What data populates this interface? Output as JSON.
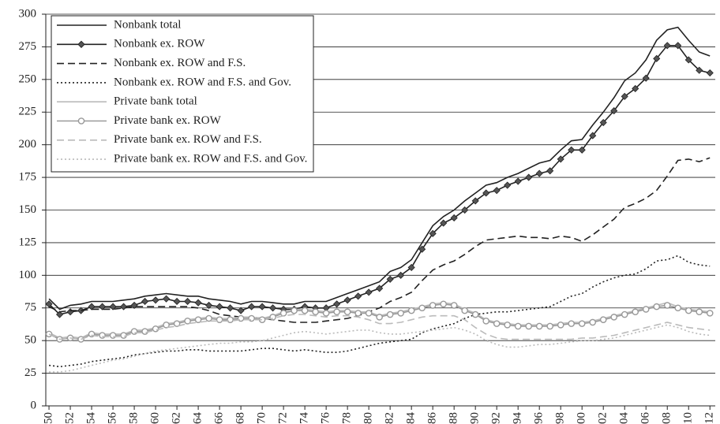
{
  "chart_data": {
    "type": "line",
    "x": [
      1950,
      1951,
      1952,
      1953,
      1954,
      1955,
      1956,
      1957,
      1958,
      1959,
      1960,
      1961,
      1962,
      1963,
      1964,
      1965,
      1966,
      1967,
      1968,
      1969,
      1970,
      1971,
      1972,
      1973,
      1974,
      1975,
      1976,
      1977,
      1978,
      1979,
      1980,
      1981,
      1982,
      1983,
      1984,
      1985,
      1986,
      1987,
      1988,
      1989,
      1990,
      1991,
      1992,
      1993,
      1994,
      1995,
      1996,
      1997,
      1998,
      1999,
      2000,
      2001,
      2002,
      2003,
      2004,
      2005,
      2006,
      2007,
      2008,
      2009,
      2010,
      2011,
      2012
    ],
    "xlim": [
      1949.7,
      2012.5
    ],
    "xticks": [
      1950,
      1952,
      1954,
      1956,
      1958,
      1960,
      1962,
      1964,
      1966,
      1968,
      1970,
      1972,
      1974,
      1976,
      1978,
      1980,
      1982,
      1984,
      1986,
      1988,
      1990,
      1992,
      1994,
      1996,
      1998,
      2000,
      2002,
      2004,
      2006,
      2008,
      2010,
      2012
    ],
    "ylim": [
      0,
      300
    ],
    "yticks": [
      0,
      25,
      50,
      75,
      100,
      125,
      150,
      175,
      200,
      225,
      250,
      275,
      300
    ],
    "grid": true,
    "legend": "upper left",
    "series": [
      {
        "name": "Nonbank total",
        "color": "#222222",
        "dash": "solid",
        "marker": "none",
        "values": [
          82,
          74,
          77,
          78,
          80,
          80,
          80,
          81,
          82,
          84,
          85,
          86,
          85,
          84,
          84,
          82,
          81,
          80,
          78,
          80,
          80,
          79,
          78,
          78,
          80,
          80,
          80,
          83,
          86,
          89,
          92,
          95,
          103,
          106,
          112,
          125,
          138,
          145,
          150,
          157,
          163,
          169,
          171,
          175,
          178,
          182,
          186,
          188,
          196,
          203,
          204,
          215,
          225,
          236,
          249,
          255,
          265,
          280,
          288,
          290,
          280,
          271,
          268
        ]
      },
      {
        "name": "Nonbank ex. ROW",
        "color": "#222222",
        "dash": "solid",
        "marker": "diamond",
        "values": [
          78,
          70,
          72,
          73,
          76,
          76,
          76,
          76,
          77,
          80,
          81,
          82,
          80,
          80,
          79,
          77,
          76,
          75,
          73,
          76,
          76,
          75,
          74,
          74,
          76,
          75,
          75,
          78,
          81,
          84,
          87,
          90,
          97,
          100,
          106,
          120,
          132,
          140,
          144,
          150,
          157,
          163,
          165,
          169,
          172,
          175,
          178,
          180,
          189,
          196,
          196,
          207,
          217,
          226,
          237,
          243,
          251,
          266,
          276,
          276,
          265,
          257,
          255
        ]
      },
      {
        "name": "Nonbank ex. ROW and F.S.",
        "color": "#222222",
        "dash": "dashed",
        "marker": "none",
        "values": [
          76,
          72,
          73,
          73,
          74,
          74,
          74,
          75,
          76,
          76,
          76,
          76,
          76,
          76,
          75,
          73,
          70,
          69,
          68,
          68,
          67,
          66,
          65,
          64,
          64,
          64,
          65,
          66,
          67,
          69,
          72,
          75,
          80,
          83,
          87,
          96,
          104,
          108,
          111,
          116,
          122,
          127,
          128,
          129,
          130,
          129,
          129,
          128,
          130,
          129,
          126,
          131,
          137,
          143,
          152,
          155,
          159,
          165,
          176,
          188,
          189,
          187,
          190
        ]
      },
      {
        "name": "Nonbank ex. ROW and F.S. and Gov.",
        "color": "#222222",
        "dash": "dotted",
        "marker": "none",
        "values": [
          31,
          30,
          31,
          32,
          34,
          35,
          36,
          37,
          39,
          40,
          41,
          42,
          42,
          43,
          43,
          42,
          42,
          42,
          42,
          43,
          44,
          44,
          43,
          42,
          43,
          42,
          41,
          41,
          42,
          44,
          46,
          48,
          49,
          50,
          51,
          56,
          59,
          61,
          63,
          67,
          70,
          71,
          72,
          72,
          73,
          74,
          75,
          76,
          80,
          84,
          86,
          91,
          95,
          98,
          100,
          101,
          105,
          111,
          112,
          115,
          110,
          108,
          107
        ]
      },
      {
        "name": "Private bank total",
        "color": "#bbbbbb",
        "dash": "solid",
        "marker": "none",
        "values": [
          56,
          52,
          53,
          52,
          56,
          55,
          55,
          55,
          58,
          58,
          60,
          63,
          64,
          66,
          67,
          68,
          67,
          67,
          68,
          68,
          67,
          69,
          72,
          74,
          74,
          73,
          72,
          73,
          73,
          72,
          72,
          69,
          71,
          72,
          74,
          76,
          78,
          79,
          78,
          74,
          71,
          66,
          64,
          63,
          62,
          62,
          62,
          62,
          63,
          64,
          64,
          65,
          67,
          69,
          71,
          73,
          75,
          77,
          79,
          76,
          74,
          73,
          72
        ]
      },
      {
        "name": "Private bank ex. ROW",
        "color": "#999999",
        "dash": "solid",
        "marker": "circle",
        "values": [
          55,
          51,
          52,
          51,
          55,
          54,
          54,
          54,
          57,
          57,
          59,
          62,
          63,
          65,
          66,
          67,
          66,
          66,
          67,
          67,
          66,
          68,
          71,
          73,
          73,
          72,
          71,
          72,
          72,
          71,
          71,
          68,
          70,
          71,
          73,
          75,
          77,
          78,
          77,
          73,
          70,
          65,
          63,
          62,
          61,
          61,
          61,
          61,
          62,
          63,
          63,
          64,
          66,
          68,
          70,
          72,
          74,
          76,
          77,
          75,
          73,
          72,
          71
        ]
      },
      {
        "name": "Private bank ex. ROW and F.S.",
        "color": "#bbbbbb",
        "dash": "dashed",
        "marker": "none",
        "values": [
          55,
          51,
          52,
          51,
          54,
          53,
          53,
          53,
          56,
          56,
          58,
          60,
          61,
          63,
          64,
          65,
          65,
          65,
          66,
          66,
          66,
          67,
          69,
          70,
          70,
          69,
          68,
          69,
          69,
          68,
          66,
          63,
          63,
          64,
          66,
          68,
          69,
          69,
          69,
          66,
          60,
          55,
          52,
          51,
          51,
          51,
          51,
          51,
          51,
          51,
          52,
          52,
          53,
          54,
          56,
          58,
          60,
          62,
          64,
          62,
          60,
          59,
          58
        ]
      },
      {
        "name": "Private bank ex. ROW and F.S. and Gov.",
        "color": "#bbbbbb",
        "dash": "dotted",
        "marker": "none",
        "values": [
          26,
          26,
          27,
          29,
          31,
          33,
          35,
          36,
          38,
          40,
          42,
          43,
          44,
          45,
          46,
          47,
          48,
          48,
          49,
          49,
          50,
          52,
          54,
          56,
          57,
          56,
          55,
          56,
          57,
          58,
          58,
          56,
          55,
          55,
          56,
          57,
          58,
          59,
          60,
          58,
          55,
          50,
          47,
          45,
          45,
          46,
          47,
          47,
          48,
          49,
          50,
          50,
          51,
          52,
          54,
          56,
          58,
          60,
          62,
          60,
          57,
          55,
          54
        ]
      }
    ]
  }
}
